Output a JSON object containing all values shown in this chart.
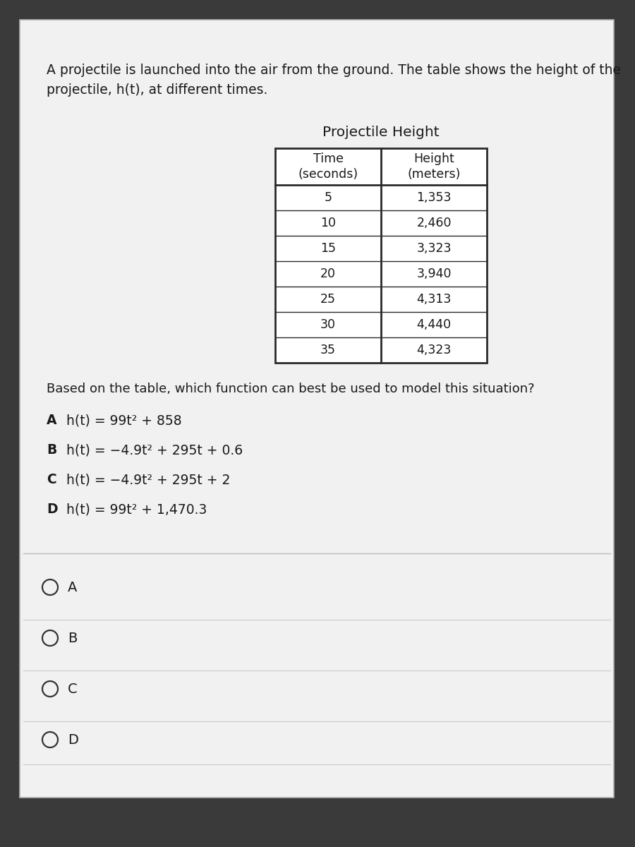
{
  "bg_outer": "#3a3a3a",
  "bg_card": "#f2f1f1",
  "intro_text_line1": "A projectile is launched into the air from the ground. The table shows the height of the",
  "intro_text_line2": "projectile, h(t), at different times.",
  "table_title": "Projectile Height",
  "col_headers": [
    "Time\n(seconds)",
    "Height\n(meters)"
  ],
  "table_data": [
    [
      "5",
      "1,353"
    ],
    [
      "10",
      "2,460"
    ],
    [
      "15",
      "3,323"
    ],
    [
      "20",
      "3,940"
    ],
    [
      "25",
      "4,313"
    ],
    [
      "30",
      "4,440"
    ],
    [
      "35",
      "4,323"
    ]
  ],
  "question": "Based on the table, which function can best be used to model this situation?",
  "options": [
    [
      "A",
      "h(t) = 99t² + 858"
    ],
    [
      "B",
      "h(t) = −4.9t² + 295t + 0.6"
    ],
    [
      "C",
      "h(t) = −4.9t² + 295t + 2"
    ],
    [
      "D",
      "h(t) = 99t² + 1,470.3"
    ]
  ],
  "text_color": "#1a1a1a",
  "table_border_color": "#2a2a2a",
  "header_bg": "#ffffff",
  "row_bg_alt": "#ffffff",
  "divider_color": "#aaaaaa",
  "radio_color": "#333333",
  "font_size_intro": 13.5,
  "font_size_table_title": 14.5,
  "font_size_table_header": 12.5,
  "font_size_table_data": 12.5,
  "font_size_question": 13.0,
  "font_size_options": 13.5,
  "font_size_radio_label": 14.0
}
